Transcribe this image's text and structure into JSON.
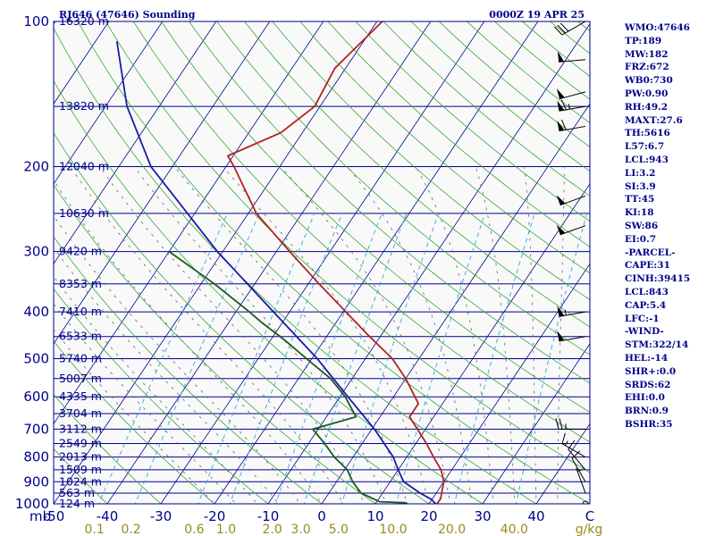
{
  "header": {
    "station": "RJ646 (47646) Sounding",
    "time": "0000Z 19 APR 25"
  },
  "indices": [
    "WMO:47646",
    "TP:189",
    "MW:182",
    "FRZ:672",
    "WB0:730",
    "PW:0.90",
    "RH:49.2",
    "MAXT:27.6",
    "TH:5616",
    "L57:6.7",
    "LCL:943",
    "LI:3.2",
    "SI:3.9",
    "TT:45",
    "KI:18",
    "SW:86",
    "EI:0.7",
    "-PARCEL-",
    "CAPE:31",
    "CINH:39415",
    "LCL:843",
    "CAP:5.4",
    "LFC:-1",
    "-WIND-",
    "STM:322/14",
    "HEL:-14",
    "SHR+:0.0",
    "SRDS:62",
    "EHI:0.0",
    "BRN:0.9",
    "BSHR:35"
  ],
  "colors": {
    "frame": "#00008b",
    "isobars": "#00008b",
    "isotherms": "#00008b",
    "dry_adiabats": "#33aa33",
    "mixing_ratio": "#33a7d9",
    "moist_adiabats": "#666666",
    "temperature": "#b22222",
    "dewpoint": "#1e5a1e",
    "parcel": "#1a1aa8",
    "labels": "#00008b",
    "mixing_labels": "#9a8a1a",
    "wind_barbs": "#000000"
  },
  "chart_data": {
    "type": "line",
    "subtype": "skew-T log-P sounding",
    "ylim": [
      1000,
      100
    ],
    "xlim": [
      -50,
      50
    ],
    "y_scale": "log",
    "axes_labels": {
      "pressure_unit": "mb",
      "temp_end_label": "C",
      "mix_unit": "g/kg"
    },
    "pressure_ticks": [
      {
        "p": 100,
        "label": "100"
      },
      {
        "p": 200,
        "label": "200"
      },
      {
        "p": 300,
        "label": "300"
      },
      {
        "p": 400,
        "label": "400"
      },
      {
        "p": 500,
        "label": "500"
      },
      {
        "p": 600,
        "label": "600"
      },
      {
        "p": 700,
        "label": "700"
      },
      {
        "p": 800,
        "label": "800"
      },
      {
        "p": 900,
        "label": "900"
      },
      {
        "p": 1000,
        "label": "1000"
      }
    ],
    "height_labels": [
      {
        "p": 100,
        "label": "16320 m"
      },
      {
        "p": 150,
        "label": "13820 m"
      },
      {
        "p": 200,
        "label": "12040 m"
      },
      {
        "p": 250,
        "label": "10630 m"
      },
      {
        "p": 300,
        "label": "9420 m"
      },
      {
        "p": 350,
        "label": "8353 m"
      },
      {
        "p": 400,
        "label": "7410 m"
      },
      {
        "p": 450,
        "label": "6533 m"
      },
      {
        "p": 500,
        "label": "5740 m"
      },
      {
        "p": 550,
        "label": "5007 m"
      },
      {
        "p": 600,
        "label": "4335 m"
      },
      {
        "p": 650,
        "label": "3704 m"
      },
      {
        "p": 700,
        "label": "3112 m"
      },
      {
        "p": 750,
        "label": "2549 m"
      },
      {
        "p": 800,
        "label": "2013 m"
      },
      {
        "p": 850,
        "label": "1509 m"
      },
      {
        "p": 900,
        "label": "1024 m"
      },
      {
        "p": 950,
        "label": "563 m"
      },
      {
        "p": 1000,
        "label": "124 m"
      }
    ],
    "temperature_ticks": [
      "-50",
      "-40",
      "-30",
      "-20",
      "-10",
      "0",
      "10",
      "20",
      "30",
      "40",
      "C"
    ],
    "temperature_tick_values": [
      -50,
      -40,
      -30,
      -20,
      -10,
      0,
      10,
      20,
      30,
      40,
      50
    ],
    "mixing_ratio_ticks": [
      {
        "w": 0.1,
        "label": "0.1"
      },
      {
        "w": 0.2,
        "label": "0.2"
      },
      {
        "w": 0.6,
        "label": "0.6"
      },
      {
        "w": 1.0,
        "label": "1.0"
      },
      {
        "w": 2.0,
        "label": "2.0"
      },
      {
        "w": 3.0,
        "label": "3.0"
      },
      {
        "w": 5.0,
        "label": "5.0"
      },
      {
        "w": 10.0,
        "label": "10.0"
      },
      {
        "w": 20.0,
        "label": "20.0"
      },
      {
        "w": 40.0,
        "label": "40.0"
      }
    ],
    "series": [
      {
        "role": "temperature",
        "points": [
          [
            1013,
            22.0
          ],
          [
            1000,
            21.5
          ],
          [
            975,
            21.5
          ],
          [
            950,
            21.0
          ],
          [
            900,
            20.0
          ],
          [
            850,
            18.0
          ],
          [
            800,
            15.0
          ],
          [
            750,
            12.0
          ],
          [
            700,
            8.5
          ],
          [
            660,
            5.5
          ],
          [
            650,
            5.5
          ],
          [
            620,
            5.5
          ],
          [
            600,
            4.0
          ],
          [
            550,
            0.0
          ],
          [
            500,
            -5.0
          ],
          [
            450,
            -12.0
          ],
          [
            400,
            -19.5
          ],
          [
            350,
            -28.0
          ],
          [
            300,
            -37.5
          ],
          [
            250,
            -48.5
          ],
          [
            200,
            -58.5
          ],
          [
            190,
            -61.0
          ],
          [
            170,
            -54.0
          ],
          [
            150,
            -51.0
          ],
          [
            125,
            -52.0
          ],
          [
            100,
            -49.0
          ]
        ]
      },
      {
        "role": "dewpoint",
        "points": [
          [
            1013,
            17.0
          ],
          [
            995,
            15.5
          ],
          [
            990,
            10.5
          ],
          [
            950,
            6.0
          ],
          [
            900,
            3.0
          ],
          [
            850,
            0.5
          ],
          [
            800,
            -3.5
          ],
          [
            750,
            -7.0
          ],
          [
            700,
            -11.0
          ],
          [
            660,
            -4.5
          ],
          [
            600,
            -9.0
          ],
          [
            550,
            -14.0
          ],
          [
            500,
            -21.0
          ],
          [
            460,
            -27.0
          ],
          [
            420,
            -34.0
          ],
          [
            400,
            -37.5
          ],
          [
            350,
            -47.5
          ],
          [
            300,
            -60.0
          ]
        ]
      },
      {
        "role": "parcel",
        "points": [
          [
            1013,
            22.0
          ],
          [
            980,
            20.0
          ],
          [
            950,
            17.0
          ],
          [
            900,
            12.5
          ],
          [
            850,
            10.0
          ],
          [
            800,
            7.5
          ],
          [
            700,
            0.5
          ],
          [
            600,
            -8.5
          ],
          [
            500,
            -19.0
          ],
          [
            400,
            -33.0
          ],
          [
            300,
            -51.0
          ],
          [
            200,
            -74.0
          ],
          [
            150,
            -86.0
          ],
          [
            110,
            -96.0
          ]
        ]
      }
    ],
    "wind_barbs": [
      {
        "p": 1000,
        "dir": 0,
        "speed": 0
      },
      {
        "p": 950,
        "dir": 340,
        "speed": 5
      },
      {
        "p": 900,
        "dir": 330,
        "speed": 10
      },
      {
        "p": 850,
        "dir": 320,
        "speed": 10
      },
      {
        "p": 800,
        "dir": 300,
        "speed": 15
      },
      {
        "p": 700,
        "dir": 270,
        "speed": 25
      },
      {
        "p": 450,
        "dir": 260,
        "speed": 50
      },
      {
        "p": 400,
        "dir": 260,
        "speed": 55
      },
      {
        "p": 265,
        "dir": 250,
        "speed": 50
      },
      {
        "p": 230,
        "dir": 250,
        "speed": 50
      },
      {
        "p": 165,
        "dir": 260,
        "speed": 60
      },
      {
        "p": 150,
        "dir": 260,
        "speed": 65
      },
      {
        "p": 140,
        "dir": 255,
        "speed": 50
      },
      {
        "p": 120,
        "dir": 265,
        "speed": 50
      },
      {
        "p": 100,
        "dir": 240,
        "speed": 30
      }
    ]
  }
}
